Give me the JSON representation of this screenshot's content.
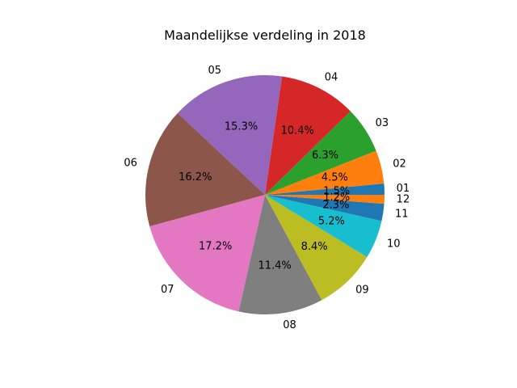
{
  "chart_data": {
    "type": "pie",
    "title": "Maandelijkse verdeling in 2018",
    "start_angle_deg": 0,
    "direction": "counterclockwise",
    "slices": [
      {
        "label": "01",
        "value": 1.5,
        "pct_label": "1.5%",
        "color": "#1f77b4"
      },
      {
        "label": "02",
        "value": 4.5,
        "pct_label": "4.5%",
        "color": "#ff7f0e"
      },
      {
        "label": "03",
        "value": 6.3,
        "pct_label": "6.3%",
        "color": "#2ca02c"
      },
      {
        "label": "04",
        "value": 10.4,
        "pct_label": "10.4%",
        "color": "#d62728"
      },
      {
        "label": "05",
        "value": 15.3,
        "pct_label": "15.3%",
        "color": "#9467bd"
      },
      {
        "label": "06",
        "value": 16.2,
        "pct_label": "16.2%",
        "color": "#8c564b"
      },
      {
        "label": "07",
        "value": 17.2,
        "pct_label": "17.2%",
        "color": "#e377c2"
      },
      {
        "label": "08",
        "value": 11.4,
        "pct_label": "11.4%",
        "color": "#7f7f7f"
      },
      {
        "label": "09",
        "value": 8.4,
        "pct_label": "8.4%",
        "color": "#bcbd22"
      },
      {
        "label": "10",
        "value": 5.2,
        "pct_label": "5.2%",
        "color": "#17becf"
      },
      {
        "label": "11",
        "value": 2.3,
        "pct_label": "2.3%",
        "color": "#1f77b4"
      },
      {
        "label": "12",
        "value": 1.2,
        "pct_label": "1.2%",
        "color": "#ff7f0e"
      }
    ]
  }
}
